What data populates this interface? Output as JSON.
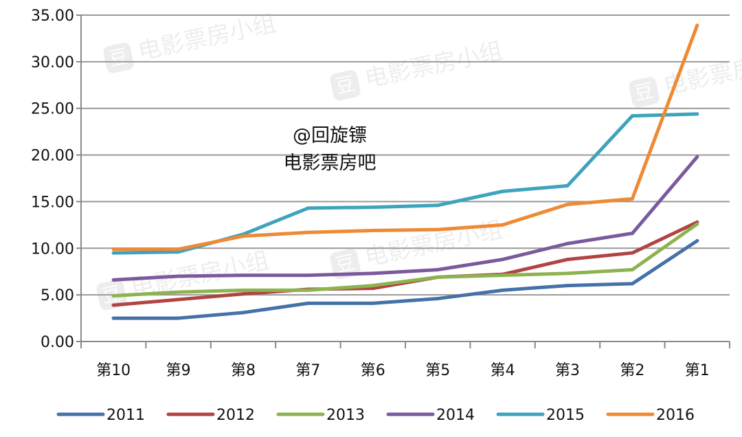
{
  "chart_data": {
    "type": "line",
    "categories": [
      "第10",
      "第9",
      "第8",
      "第7",
      "第6",
      "第5",
      "第4",
      "第3",
      "第2",
      "第1"
    ],
    "ylim": [
      0,
      35
    ],
    "yticks": [
      "0.00",
      "5.00",
      "10.00",
      "15.00",
      "20.00",
      "25.00",
      "30.00",
      "35.00"
    ],
    "grid": true,
    "legend_position": "bottom",
    "series": [
      {
        "name": "2011",
        "color": "#4472a8",
        "values": [
          2.5,
          2.5,
          3.1,
          4.1,
          4.1,
          4.6,
          5.5,
          6.0,
          6.2,
          10.8
        ]
      },
      {
        "name": "2012",
        "color": "#b04442",
        "values": [
          3.9,
          4.5,
          5.1,
          5.6,
          5.7,
          6.9,
          7.2,
          8.8,
          9.5,
          12.8
        ]
      },
      {
        "name": "2013",
        "color": "#8db350",
        "values": [
          4.9,
          5.3,
          5.5,
          5.5,
          6.0,
          6.9,
          7.1,
          7.3,
          7.7,
          12.6
        ]
      },
      {
        "name": "2014",
        "color": "#7a5a9c",
        "values": [
          6.6,
          7.0,
          7.1,
          7.1,
          7.3,
          7.7,
          8.8,
          10.5,
          11.6,
          19.8
        ]
      },
      {
        "name": "2015",
        "color": "#3ea3bc",
        "values": [
          9.5,
          9.6,
          11.5,
          14.3,
          14.4,
          14.6,
          16.1,
          16.7,
          24.2,
          24.4
        ]
      },
      {
        "name": "2016",
        "color": "#ee8a35",
        "values": [
          9.9,
          9.9,
          11.3,
          11.7,
          11.9,
          12.0,
          12.5,
          14.7,
          15.3,
          33.9
        ]
      }
    ]
  },
  "annotation": {
    "line1": "@回旋镖",
    "line2": "电影票房吧"
  },
  "watermark": {
    "logo": "豆",
    "text": "电影票房小组"
  }
}
